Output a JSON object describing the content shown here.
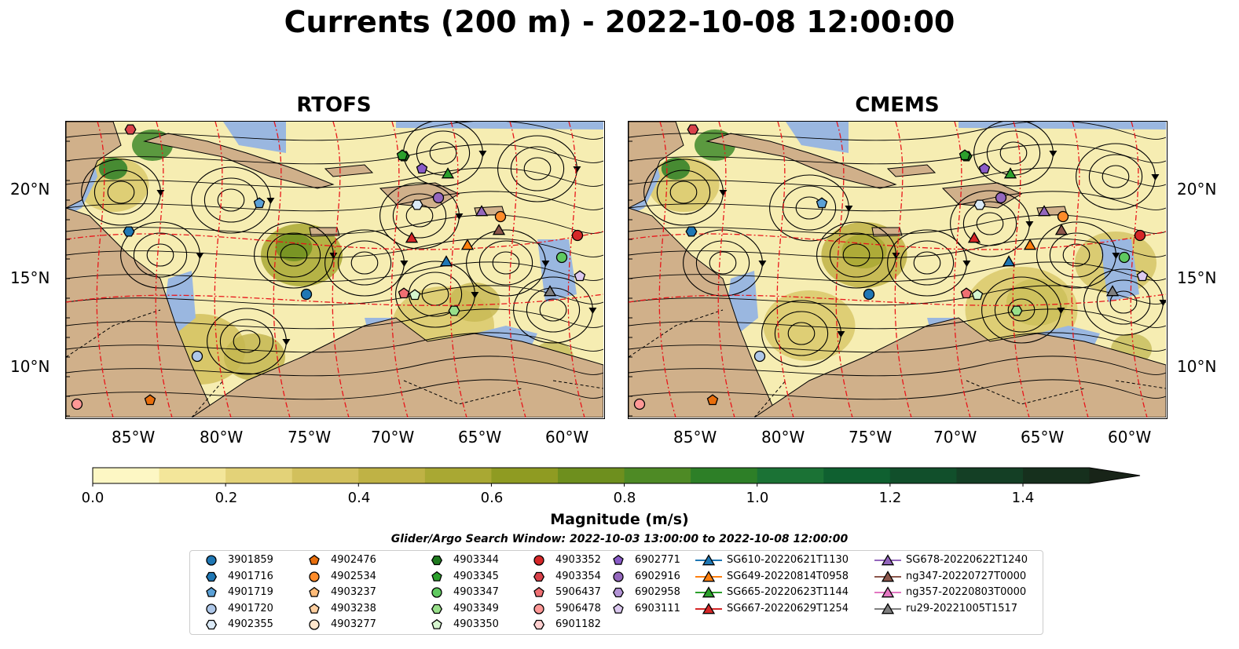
{
  "title": "Currents (200 m) - 2022-10-08 12:00:00",
  "panels": [
    {
      "title": "RTOFS"
    },
    {
      "title": "CMEMS"
    }
  ],
  "lat_labels": [
    "20°N",
    "15°N",
    "10°N"
  ],
  "lon_labels": [
    "85°W",
    "80°W",
    "75°W",
    "70°W",
    "65°W",
    "60°W"
  ],
  "colorbar": {
    "label": "Magnitude (m/s)",
    "ticks": [
      "0.0",
      "0.2",
      "0.4",
      "0.6",
      "0.8",
      "1.0",
      "1.2",
      "1.4"
    ],
    "colors": [
      "#fdf7c4",
      "#f3e69a",
      "#e3d278",
      "#d2c05c",
      "#bfb245",
      "#a9a833",
      "#8f9b22",
      "#6e8f1e",
      "#4e8a25",
      "#2d7f27",
      "#1b7235",
      "#0f6030",
      "#114f2b",
      "#143f25",
      "#16301d",
      "#182418"
    ]
  },
  "search_window": "Glider/Argo Search Window: 2022-10-03 13:00:00 to 2022-10-08 12:00:00",
  "legend": {
    "columns": [
      [
        {
          "label": "3901859",
          "marker": "circle",
          "color": "#1f77b4"
        },
        {
          "label": "4901716",
          "marker": "hexagon",
          "color": "#1f77b4"
        },
        {
          "label": "4901719",
          "marker": "pentagon",
          "color": "#5aa0d6"
        },
        {
          "label": "4901720",
          "marker": "circle",
          "color": "#aec7e8"
        },
        {
          "label": "4902355",
          "marker": "hexagon",
          "color": "#dbeaf7"
        }
      ],
      [
        {
          "label": "4902476",
          "marker": "pentagon",
          "color": "#e86e0c"
        },
        {
          "label": "4902534",
          "marker": "circle",
          "color": "#ff8c2a"
        },
        {
          "label": "4903237",
          "marker": "pentagon",
          "color": "#ffbb78"
        },
        {
          "label": "4903238",
          "marker": "pentagon",
          "color": "#ffcfa0"
        },
        {
          "label": "4903277",
          "marker": "circle",
          "color": "#ffe6cc"
        }
      ],
      [
        {
          "label": "4903344",
          "marker": "hexagon",
          "color": "#1f7a1f"
        },
        {
          "label": "4903345",
          "marker": "pentagon",
          "color": "#2ca02c"
        },
        {
          "label": "4903347",
          "marker": "circle",
          "color": "#5fc95f"
        },
        {
          "label": "4903349",
          "marker": "hexagon",
          "color": "#98df8a"
        },
        {
          "label": "4903350",
          "marker": "pentagon",
          "color": "#d6f5cf"
        }
      ],
      [
        {
          "label": "4903352",
          "marker": "circle",
          "color": "#d62728"
        },
        {
          "label": "4903354",
          "marker": "hexagon",
          "color": "#d9414a"
        },
        {
          "label": "5906437",
          "marker": "pentagon",
          "color": "#ef6f72"
        },
        {
          "label": "5906478",
          "marker": "circle",
          "color": "#ff9896"
        },
        {
          "label": "6901182",
          "marker": "hexagon",
          "color": "#ffd0d0"
        }
      ],
      [
        {
          "label": "6902771",
          "marker": "pentagon",
          "color": "#8a5cc8"
        },
        {
          "label": "6902916",
          "marker": "circle",
          "color": "#9467bd"
        },
        {
          "label": "6902958",
          "marker": "hexagon",
          "color": "#b394d6"
        },
        {
          "label": "6903111",
          "marker": "pentagon",
          "color": "#dcc9f0"
        }
      ],
      [
        {
          "label": "SG610-20220621T1130",
          "marker": "triangle",
          "color": "#1f77b4"
        },
        {
          "label": "SG649-20220814T0958",
          "marker": "triangle",
          "color": "#ff7f0e"
        },
        {
          "label": "SG665-20220623T1144",
          "marker": "triangle",
          "color": "#2ca02c"
        },
        {
          "label": "SG667-20220629T1254",
          "marker": "triangle",
          "color": "#d62728"
        }
      ],
      [
        {
          "label": "SG678-20220622T1240",
          "marker": "triangle",
          "color": "#9467bd"
        },
        {
          "label": "ng347-20220727T0000",
          "marker": "triangle",
          "color": "#8c564b"
        },
        {
          "label": "ng357-20220803T0000",
          "marker": "triangle",
          "color": "#e377c2"
        },
        {
          "label": "ru29-20221005T1517",
          "marker": "triangle",
          "color": "#7f7f7f"
        }
      ]
    ]
  }
}
